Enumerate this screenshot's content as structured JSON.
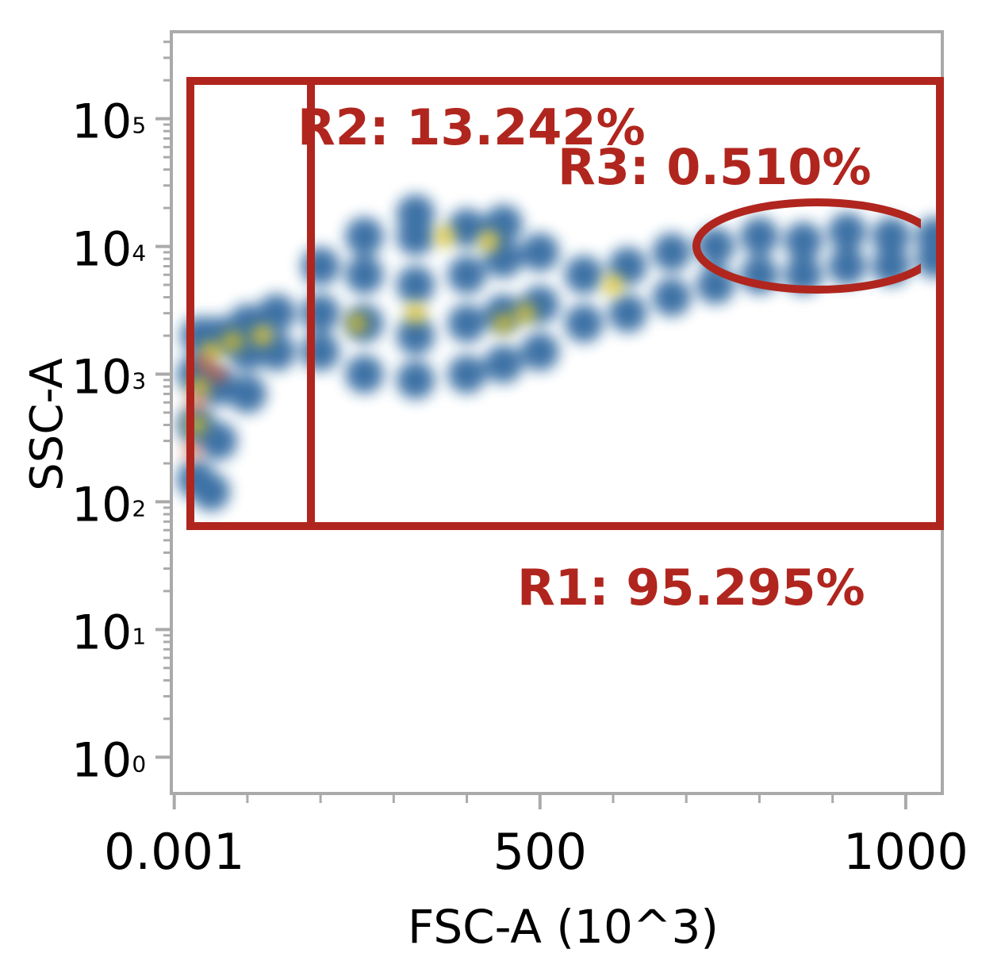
{
  "chart_data": {
    "type": "scatter",
    "x_label": "FSC-A (10^3)",
    "y_label": "SSC-A",
    "xlim": [
      -4,
      1050
    ],
    "ylim": [
      0.52,
      480000
    ],
    "log_y": true,
    "log_minor_ticks": true,
    "xticks": [
      {
        "value": 0.001,
        "label": "0.001"
      },
      500,
      1000
    ],
    "xminorticks": [
      100,
      200,
      300,
      400,
      600,
      700,
      800,
      900
    ],
    "yticks": [
      {
        "value": 1,
        "label": "10",
        "exponent": "0"
      },
      {
        "value": 10,
        "label": "10",
        "exponent": "1"
      },
      {
        "value": 100,
        "label": "10",
        "exponent": "2"
      },
      {
        "value": 1000,
        "label": "10",
        "exponent": "3"
      },
      {
        "value": 10000,
        "label": "10",
        "exponent": "4"
      },
      {
        "value": 100000,
        "label": "10",
        "exponent": "5"
      }
    ],
    "annotations": [
      "R2: 13.242%",
      "R3: 0.510%",
      "R1: 95.295%"
    ],
    "series": [
      {
        "color": "#1f5a96",
        "size": 24,
        "x": [
          30,
          30,
          30,
          35,
          60,
          60,
          60,
          100,
          100,
          100,
          140,
          140,
          50,
          200,
          200,
          200,
          260,
          260,
          260,
          260,
          330,
          330,
          330,
          330,
          330,
          400,
          400,
          400,
          400,
          450,
          450,
          450,
          450,
          500,
          500,
          500,
          560,
          560,
          620,
          620,
          680,
          680,
          740,
          740,
          800,
          800,
          860,
          860,
          920,
          920,
          980,
          980,
          1040,
          1040
        ],
        "values": [
          150,
          400,
          1000,
          2000,
          300,
          800,
          2000,
          700,
          1500,
          2500,
          1500,
          3000,
          120,
          1500,
          3000,
          7000,
          1000,
          2500,
          6000,
          12000,
          900,
          2000,
          5000,
          12000,
          18000,
          1000,
          2500,
          6000,
          14000,
          1200,
          3000,
          8000,
          15000,
          1500,
          3500,
          9000,
          2500,
          6000,
          3000,
          7000,
          4000,
          9000,
          5000,
          10000,
          6000,
          12000,
          6000,
          11000,
          7000,
          13000,
          7000,
          12000,
          8000,
          12000
        ]
      },
      {
        "color": "#e2c51f",
        "size": 13,
        "x": [
          30,
          35,
          50,
          80,
          120,
          250,
          330,
          450,
          480,
          370,
          430,
          600
        ],
        "values": [
          400,
          800,
          1500,
          1800,
          2000,
          2500,
          3000,
          2500,
          3000,
          12000,
          11000,
          5000
        ]
      },
      {
        "color": "#e0522a",
        "size": 10,
        "x": [
          25,
          30,
          40,
          60
        ],
        "values": [
          250,
          600,
          1200,
          1000
        ]
      }
    ]
  }
}
